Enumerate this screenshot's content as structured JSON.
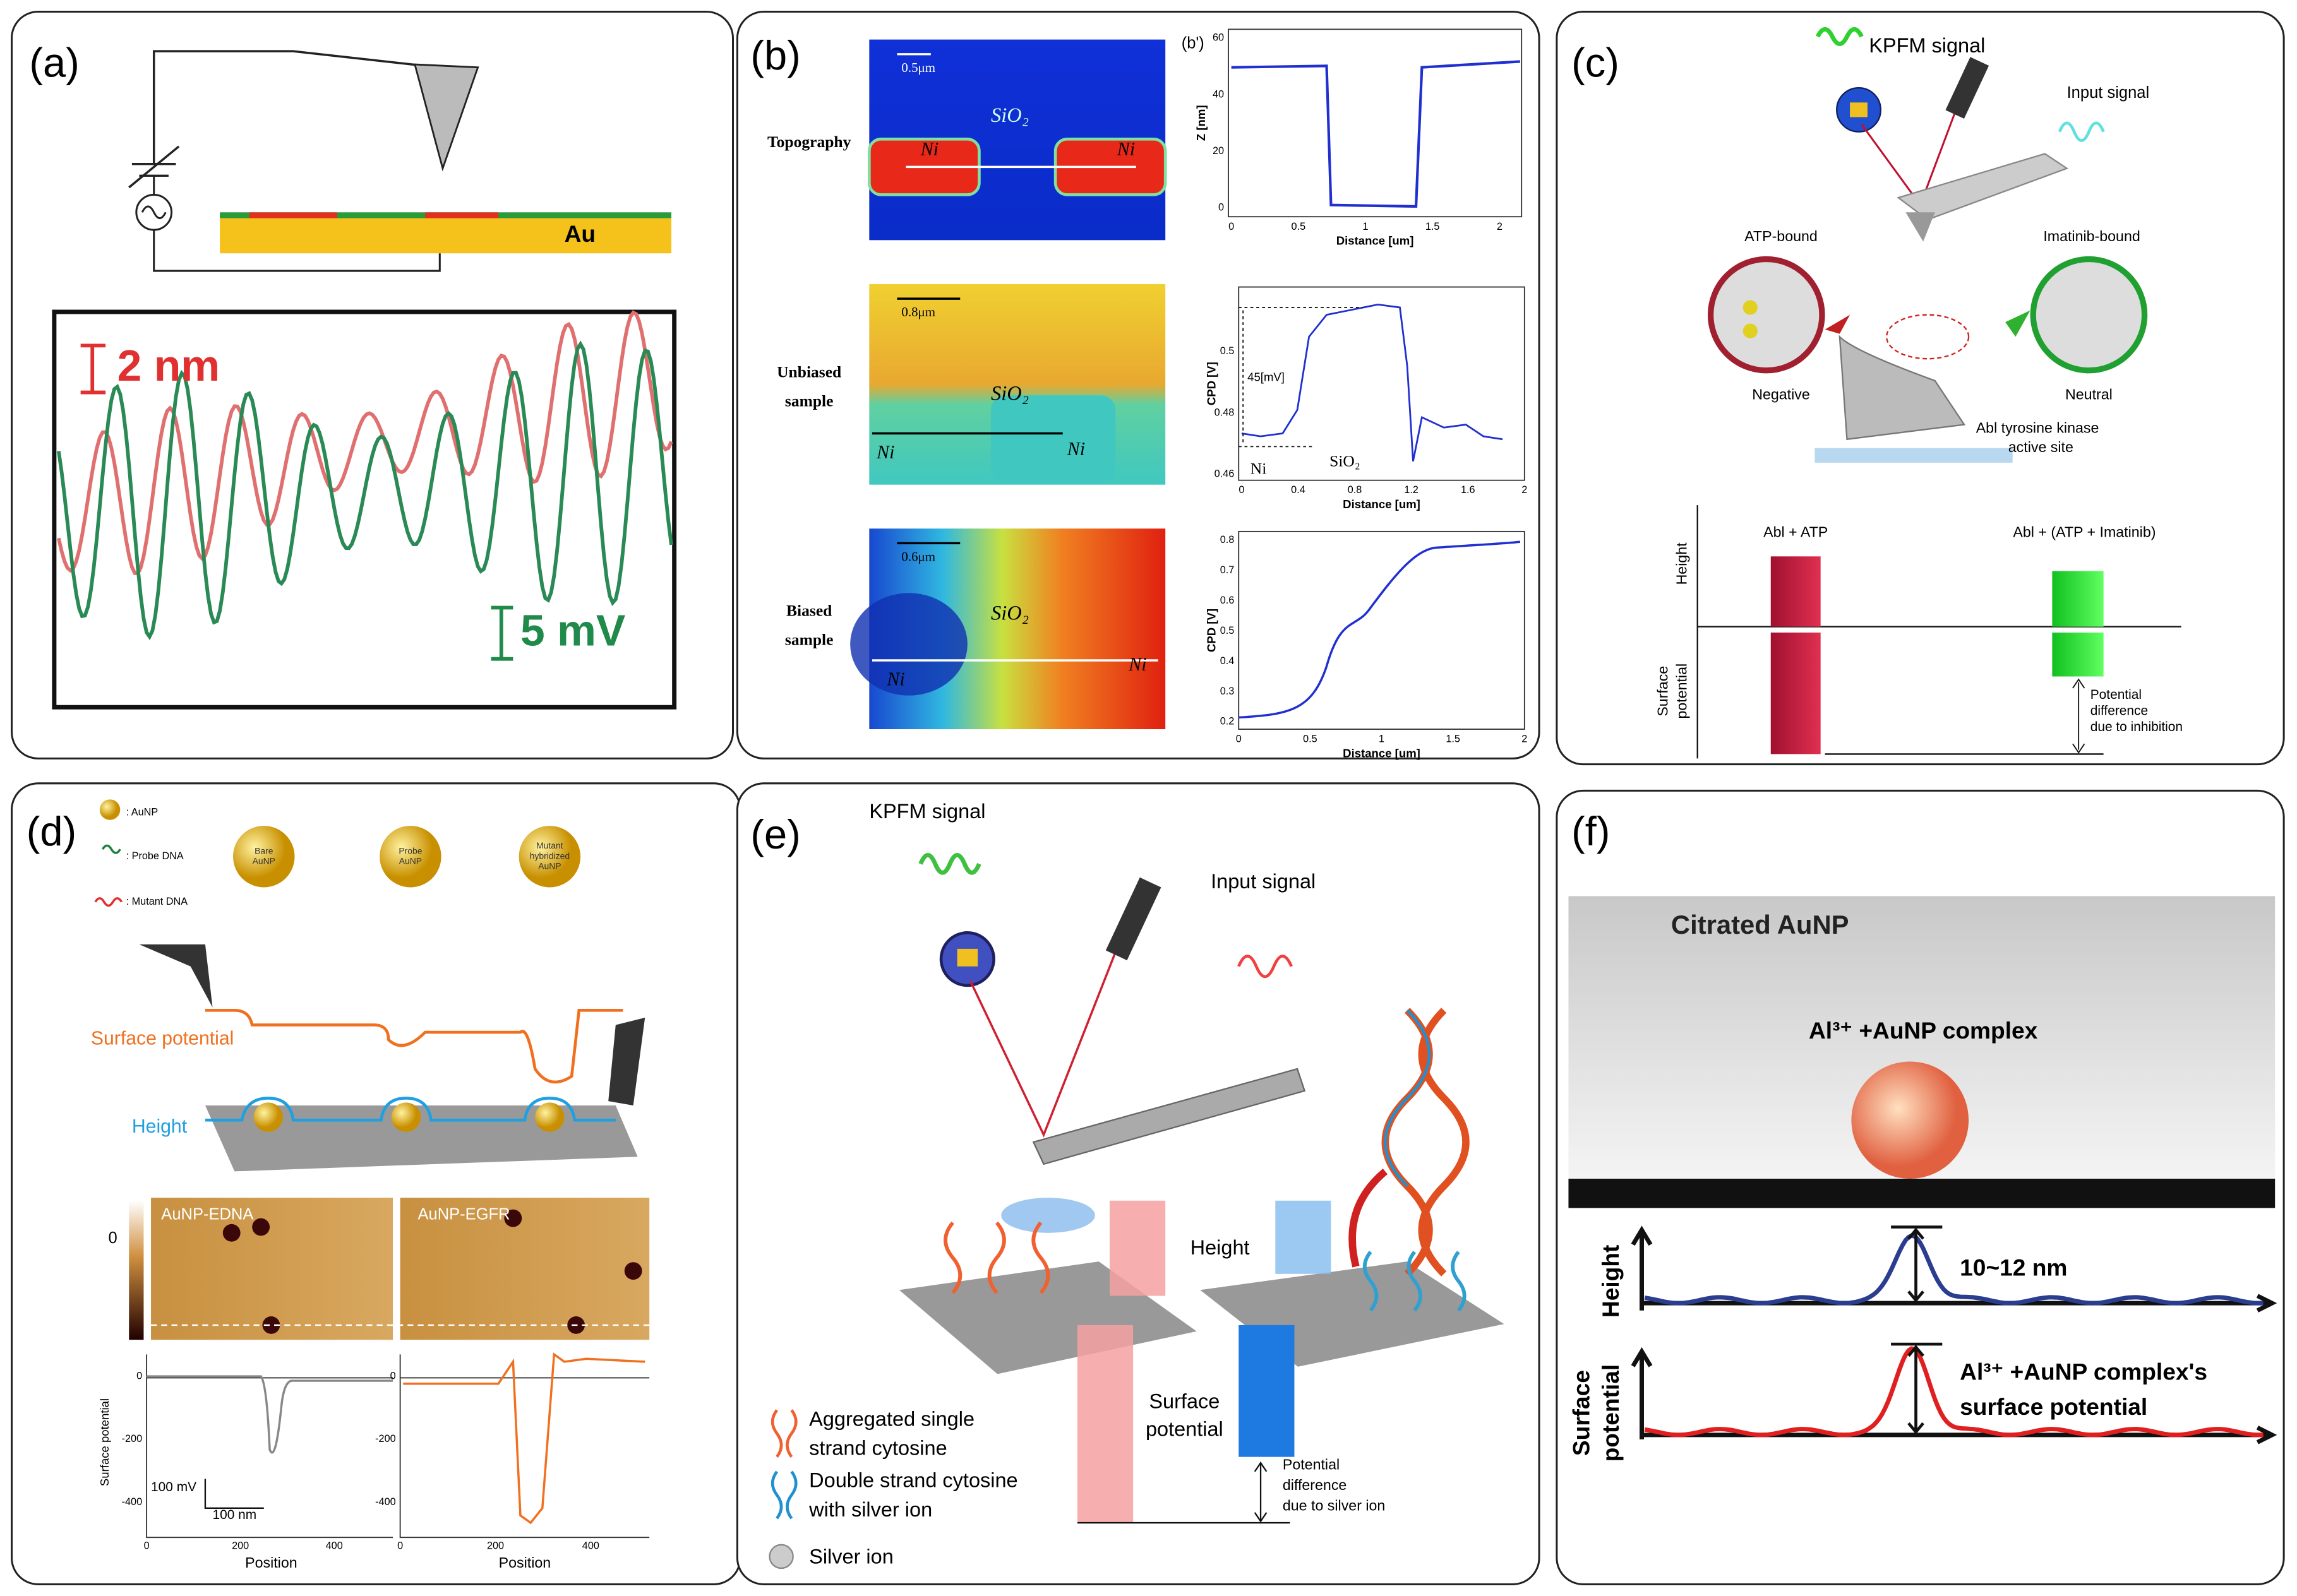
{
  "panels": {
    "a": {
      "label": "(a)",
      "sample": "Au",
      "scale_height": "2 nm",
      "scale_potential": "5 mV"
    },
    "b": {
      "label": "(b)",
      "inset_label": "(b')",
      "rows": [
        {
          "name": [
            "Topography"
          ],
          "scale": "0.5μm",
          "material": "SiO₂",
          "left": "Ni",
          "right": "Ni"
        },
        {
          "name": [
            "Unbiased",
            "sample"
          ],
          "scale": "0.8μm",
          "material": "SiO₂",
          "left": "Ni",
          "right": "Ni"
        },
        {
          "name": [
            "Biased",
            "sample"
          ],
          "scale": "0.6μm",
          "material": "SiO₂",
          "left": "Ni",
          "right": "Ni"
        }
      ],
      "plots": [
        {
          "ylabel": "Z [nm]",
          "xlabel": "Distance [um]",
          "xticks": [
            0,
            0.5,
            1,
            1.5,
            2
          ],
          "yticks": [
            0,
            20,
            40,
            60
          ]
        },
        {
          "ylabel": "CPD [V]",
          "xlabel": "Distance [um]",
          "xticks": [
            0,
            0.4,
            0.8,
            1.2,
            1.6,
            2
          ],
          "yticks": [
            0.46,
            0.48,
            0.5
          ],
          "annotation": "45[mV]",
          "left": "Ni",
          "right": "SiO₂"
        },
        {
          "ylabel": "CPD [V]",
          "xlabel": "Distance [um]",
          "xticks": [
            0,
            0.5,
            1,
            1.5,
            2
          ],
          "yticks": [
            0.2,
            0.3,
            0.4,
            0.5,
            0.6,
            0.7,
            0.8
          ]
        }
      ]
    },
    "c": {
      "label": "(c)",
      "kpfm": "KPFM signal",
      "input": "Input signal",
      "left_state": "ATP-bound",
      "right_state": "Imatinib-bound",
      "left_charge": "Negative",
      "right_charge": "Neutral",
      "site": [
        "Abl tyrosine kinase",
        "active site"
      ],
      "height": "Height",
      "surface": [
        "Surface",
        "potential"
      ],
      "bar1": "Abl + ATP",
      "bar2": "Abl + (ATP + Imatinib)",
      "difference": [
        "Potential",
        "difference",
        "due to inhibition"
      ]
    },
    "d": {
      "label": "(d)",
      "legend": [
        ": AuNP",
        ": Probe DNA",
        ": Mutant DNA"
      ],
      "particles": [
        [
          "Bare",
          "AuNP"
        ],
        [
          "Probe",
          "AuNP"
        ],
        [
          "Mutant",
          "hybridized",
          "AuNP"
        ]
      ],
      "surface": "Surface potential",
      "height": "Height",
      "images": [
        "AuNP-EDNA",
        "AuNP-EGFR"
      ],
      "colorbar": "0",
      "ylabel": "Surface potential",
      "scale_v": "100 mV",
      "scale_x": "100 nm",
      "xlabel": "Position",
      "xticks": [
        0,
        200,
        400
      ],
      "yticks": [
        0,
        -200,
        -400
      ]
    },
    "e": {
      "label": "(e)",
      "kpfm": "KPFM signal",
      "input": "Input signal",
      "height": "Height",
      "surface": [
        "Surface",
        "potential"
      ],
      "difference": [
        "Potential",
        "difference",
        "due to silver ion"
      ],
      "legend": [
        [
          "Aggregated single",
          "strand cytosine"
        ],
        [
          "Double strand cytosine",
          "with silver ion"
        ],
        [
          "Silver ion"
        ]
      ]
    },
    "f": {
      "label": "(f)",
      "title": "Citrated AuNP",
      "complex": "Al³⁺ +AuNP complex",
      "height": "Height",
      "surface": [
        "Surface",
        "potential"
      ],
      "size": "10~12 nm",
      "complex_potential": [
        "Al³⁺ +AuNP complex's",
        "surface potential"
      ]
    }
  }
}
